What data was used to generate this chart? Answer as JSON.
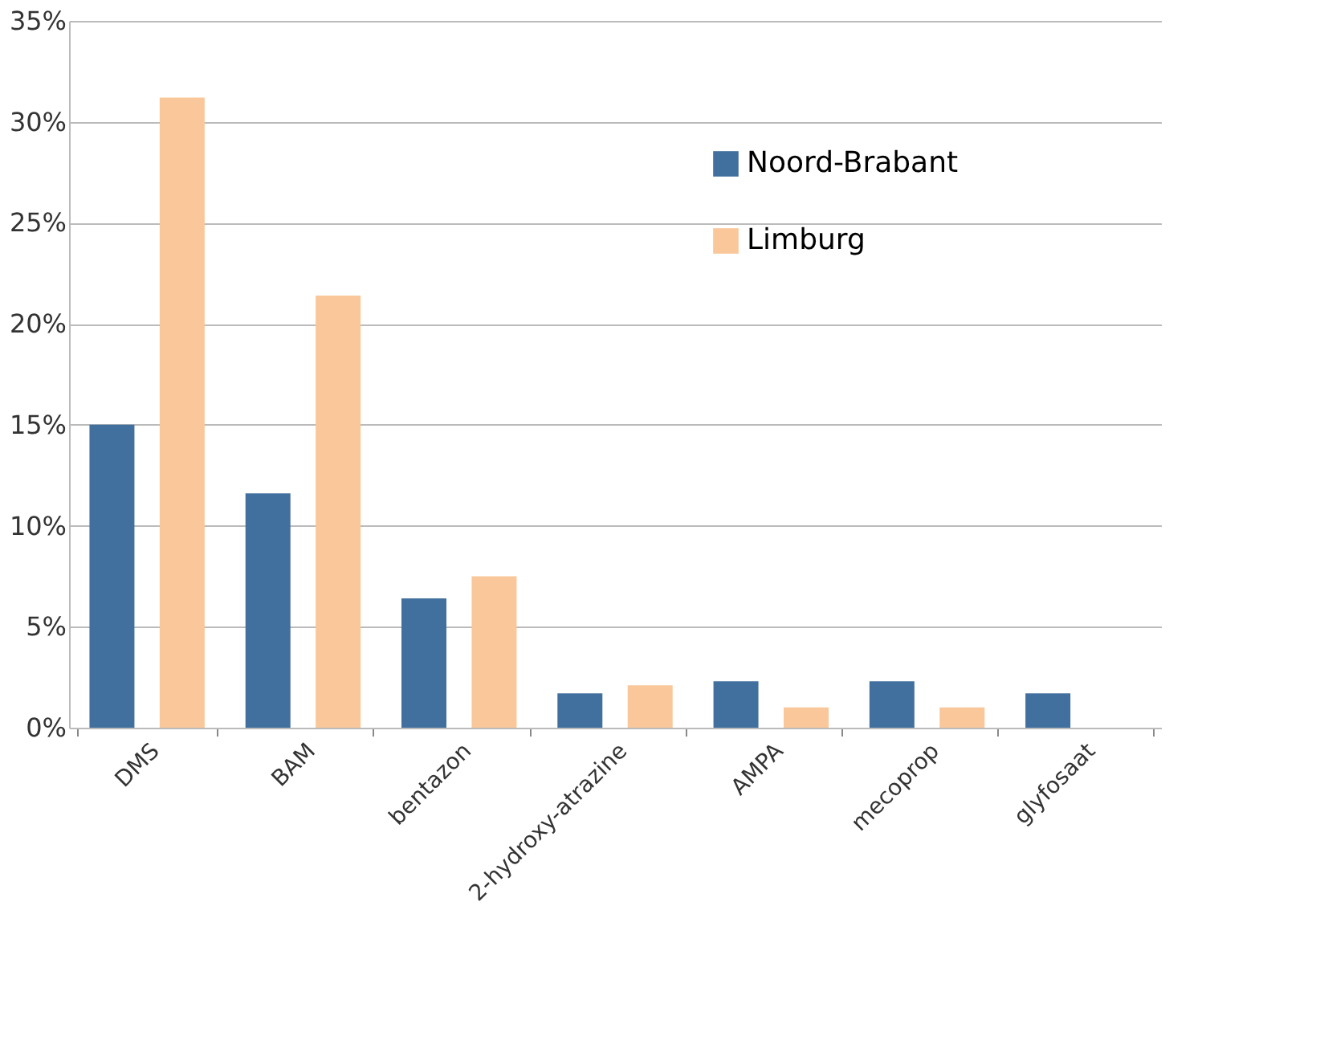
{
  "chart_data": {
    "type": "bar",
    "categories": [
      "DMS",
      "BAM",
      "bentazon",
      "2-hydroxy-atrazine",
      "AMPA",
      "mecoprop",
      "glyfosaat"
    ],
    "series": [
      {
        "name": "Noord-Brabant",
        "color": "#41709f",
        "values": [
          15.0,
          11.6,
          6.4,
          1.7,
          2.3,
          2.3,
          1.7
        ]
      },
      {
        "name": "Limburg",
        "color": "#f9c799",
        "values": [
          31.2,
          21.4,
          7.5,
          2.1,
          1.0,
          1.0,
          null
        ]
      }
    ],
    "ylim": [
      0,
      35
    ],
    "yticks": [
      {
        "value": 0,
        "label": "0%"
      },
      {
        "value": 5,
        "label": "5%"
      },
      {
        "value": 10,
        "label": "10%"
      },
      {
        "value": 15,
        "label": "15%"
      },
      {
        "value": 20,
        "label": "20%"
      },
      {
        "value": 25,
        "label": "25%"
      },
      {
        "value": 30,
        "label": "30%"
      },
      {
        "value": 35,
        "label": "35%"
      }
    ],
    "grid": "y",
    "legend": "top"
  }
}
